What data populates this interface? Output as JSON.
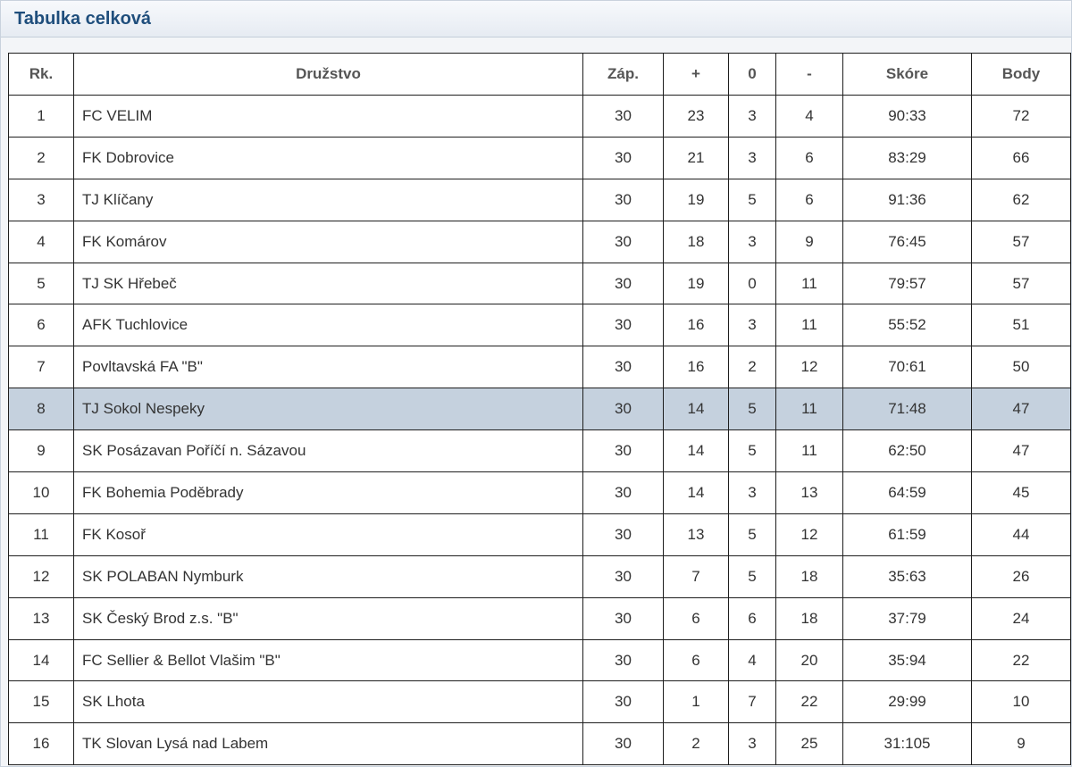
{
  "header": {
    "title": "Tabulka celková"
  },
  "table": {
    "columns": [
      "Rk.",
      "Družstvo",
      "Záp.",
      "+",
      "0",
      "-",
      "Skóre",
      "Body"
    ],
    "highlight_rank": "8",
    "highlight_color": "#c5d1de",
    "rows": [
      {
        "rank": "1",
        "team": "FC VELIM",
        "played": "30",
        "wins": "23",
        "draws": "3",
        "losses": "4",
        "score": "90:33",
        "points": "72"
      },
      {
        "rank": "2",
        "team": "FK Dobrovice",
        "played": "30",
        "wins": "21",
        "draws": "3",
        "losses": "6",
        "score": "83:29",
        "points": "66"
      },
      {
        "rank": "3",
        "team": "TJ Klíčany",
        "played": "30",
        "wins": "19",
        "draws": "5",
        "losses": "6",
        "score": "91:36",
        "points": "62"
      },
      {
        "rank": "4",
        "team": "FK Komárov",
        "played": "30",
        "wins": "18",
        "draws": "3",
        "losses": "9",
        "score": "76:45",
        "points": "57"
      },
      {
        "rank": "5",
        "team": "TJ SK Hřebeč",
        "played": "30",
        "wins": "19",
        "draws": "0",
        "losses": "11",
        "score": "79:57",
        "points": "57"
      },
      {
        "rank": "6",
        "team": "AFK Tuchlovice",
        "played": "30",
        "wins": "16",
        "draws": "3",
        "losses": "11",
        "score": "55:52",
        "points": "51"
      },
      {
        "rank": "7",
        "team": "Povltavská FA \"B\"",
        "played": "30",
        "wins": "16",
        "draws": "2",
        "losses": "12",
        "score": "70:61",
        "points": "50"
      },
      {
        "rank": "8",
        "team": "TJ Sokol Nespeky",
        "played": "30",
        "wins": "14",
        "draws": "5",
        "losses": "11",
        "score": "71:48",
        "points": "47"
      },
      {
        "rank": "9",
        "team": "SK Posázavan Poříčí n. Sázavou",
        "played": "30",
        "wins": "14",
        "draws": "5",
        "losses": "11",
        "score": "62:50",
        "points": "47"
      },
      {
        "rank": "10",
        "team": "FK Bohemia Poděbrady",
        "played": "30",
        "wins": "14",
        "draws": "3",
        "losses": "13",
        "score": "64:59",
        "points": "45"
      },
      {
        "rank": "11",
        "team": "FK Kosoř",
        "played": "30",
        "wins": "13",
        "draws": "5",
        "losses": "12",
        "score": "61:59",
        "points": "44"
      },
      {
        "rank": "12",
        "team": "SK POLABAN Nymburk",
        "played": "30",
        "wins": "7",
        "draws": "5",
        "losses": "18",
        "score": "35:63",
        "points": "26"
      },
      {
        "rank": "13",
        "team": "SK Český Brod z.s. \"B\"",
        "played": "30",
        "wins": "6",
        "draws": "6",
        "losses": "18",
        "score": "37:79",
        "points": "24"
      },
      {
        "rank": "14",
        "team": "FC Sellier & Bellot Vlašim \"B\"",
        "played": "30",
        "wins": "6",
        "draws": "4",
        "losses": "20",
        "score": "35:94",
        "points": "22"
      },
      {
        "rank": "15",
        "team": "SK Lhota",
        "played": "30",
        "wins": "1",
        "draws": "7",
        "losses": "22",
        "score": "29:99",
        "points": "10"
      },
      {
        "rank": "16",
        "team": "TK Slovan Lysá nad Labem",
        "played": "30",
        "wins": "2",
        "draws": "3",
        "losses": "25",
        "score": "31:105",
        "points": "9"
      }
    ]
  }
}
